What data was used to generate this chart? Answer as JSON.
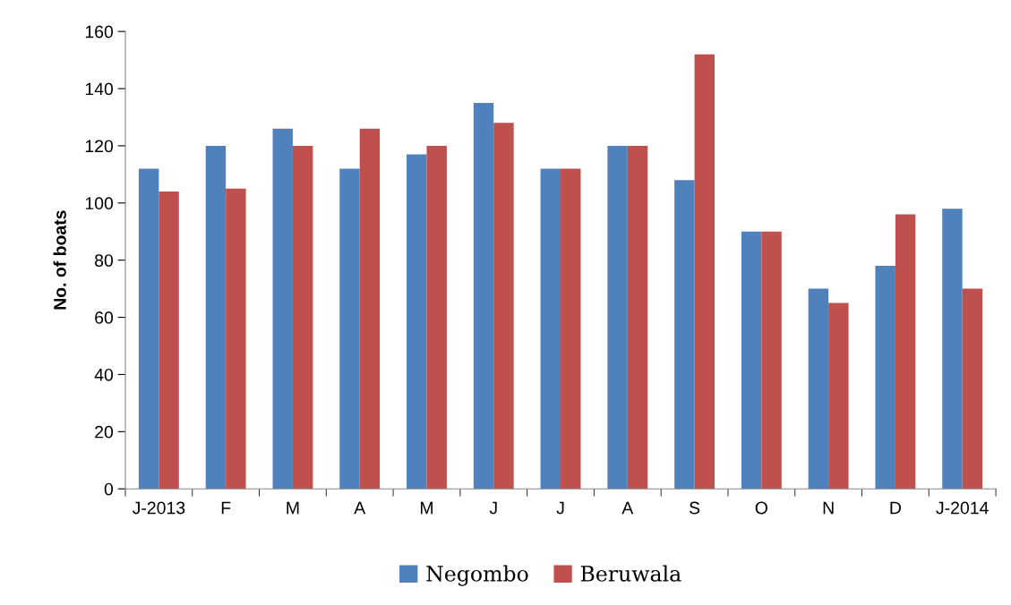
{
  "chart_data": {
    "type": "bar",
    "ylabel": "No. of boats",
    "categories": [
      "J-2013",
      "F",
      "M",
      "A",
      "M",
      "J",
      "J",
      "A",
      "S",
      "O",
      "N",
      "D",
      "J-2014"
    ],
    "series": [
      {
        "name": "Negombo",
        "color": "#4f81bd",
        "values": [
          112,
          120,
          126,
          112,
          117,
          135,
          112,
          120,
          108,
          90,
          70,
          78,
          98
        ]
      },
      {
        "name": "Beruwala",
        "color": "#c0504d",
        "values": [
          104,
          105,
          120,
          126,
          120,
          128,
          112,
          120,
          152,
          90,
          65,
          96,
          70
        ]
      }
    ],
    "ylim": [
      0,
      160
    ],
    "yticks": [
      0,
      20,
      40,
      60,
      80,
      100,
      120,
      140,
      160
    ],
    "grid": false,
    "legend": "bottom"
  }
}
